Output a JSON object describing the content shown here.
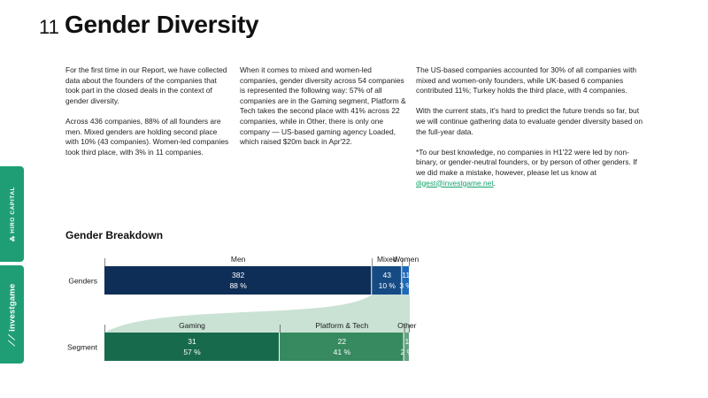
{
  "header": {
    "page_number": "11",
    "title": "Gender Diversity"
  },
  "text": {
    "col1": [
      "For the first time in our Report, we have collected data about the founders of the companies that took part in the closed deals in the context of gender diversity.",
      "Across 436 companies, 88% of all founders are men. Mixed genders are holding second place with 10% (43 companies). Women-led companies took third place, with 3% in 11 companies."
    ],
    "col2": [
      "When it comes to mixed and women-led companies, gender diversity across 54 companies is represented the following way: 57% of all companies are in the Gaming segment, Platform & Tech takes the second place with 41% across 22 companies, while in Other, there is only one company — US-based gaming agency Loaded, which raised $20m back in Apr'22."
    ],
    "col3": [
      "The US-based companies accounted for 30% of all companies with mixed and women-only founders, while UK-based 6 companies contributed 11%; Turkey holds the third place, with 4 companies.",
      "With the current stats, it's hard to predict the future trends so far, but we will continue gathering data to evaluate gender diversity based on the full-year data."
    ],
    "footnote": "*To our best knowledge, no companies in H1'22 were led by non-binary, or gender-neutral founders, or by person of other genders. If we did make a mistake, however, please let us know at ",
    "email": "digest@investgame.net",
    "footnote_end": "."
  },
  "sidebar": {
    "tab1": "⁂ HIRO CAPITAL",
    "tab2": "⟋⟋ investgame"
  },
  "chart_data": {
    "type": "bar",
    "title": "Gender Breakdown",
    "rows": [
      {
        "label": "Genders",
        "segments": [
          {
            "name": "Men",
            "value": 382,
            "percent": "88 %",
            "color": "#0f2e57"
          },
          {
            "name": "Mixed",
            "value": 43,
            "percent": "10 %",
            "color": "#164a83"
          },
          {
            "name": "Women",
            "value": 11,
            "percent": "3 %",
            "color": "#1f6ab8"
          }
        ]
      },
      {
        "label": "Segment",
        "segments": [
          {
            "name": "Gaming",
            "value": 31,
            "percent": "57 %",
            "color": "#176b4c"
          },
          {
            "name": "Platform & Tech",
            "value": 22,
            "percent": "41 %",
            "color": "#37895f"
          },
          {
            "name": "Other",
            "value": 1,
            "percent": "2 %",
            "color": "#64a280"
          }
        ]
      }
    ],
    "connector_color": "#c9e2d4"
  }
}
